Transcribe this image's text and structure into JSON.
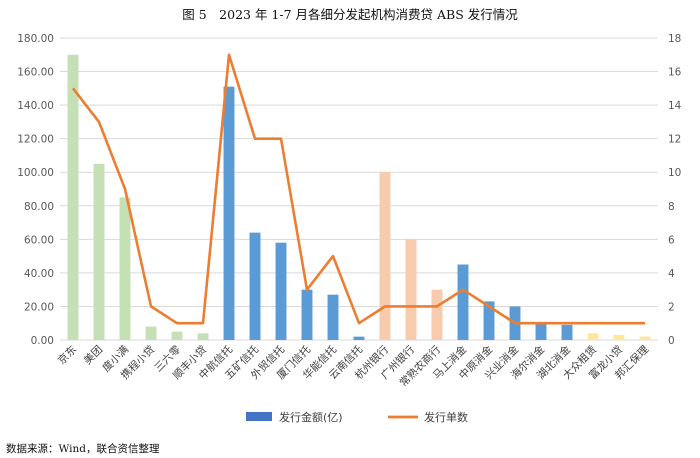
{
  "title": "图 5　2023 年 1-7 月各细分发起机构消费贷 ABS 发行情况",
  "source": "数据来源：Wind，联合资信整理",
  "chart_data": {
    "type": "bar",
    "categories": [
      "京东",
      "美团",
      "度小满",
      "携程小贷",
      "三六零",
      "顺丰小贷",
      "中航信托",
      "五矿信托",
      "外贸信托",
      "厦门信托",
      "华能信托",
      "云南信托",
      "杭州银行",
      "广州银行",
      "常熟农商行",
      "马上消金",
      "中原消金",
      "兴业消金",
      "海尔消金",
      "湖北消金",
      "大众租赁",
      "富龙小贷",
      "邦汇保理"
    ],
    "series": [
      {
        "name": "发行金额(亿)",
        "kind": "bar",
        "axis": "left",
        "values": [
          170,
          105,
          85,
          8,
          5,
          4,
          151,
          64,
          58,
          30,
          27,
          2,
          100,
          60,
          30,
          45,
          23,
          20,
          10,
          9,
          4,
          3,
          2
        ],
        "colors": [
          "#c5e0b4",
          "#c5e0b4",
          "#c5e0b4",
          "#c5e0b4",
          "#c5e0b4",
          "#c5e0b4",
          "#5b9bd5",
          "#5b9bd5",
          "#5b9bd5",
          "#5b9bd5",
          "#5b9bd5",
          "#5b9bd5",
          "#f8cbad",
          "#f8cbad",
          "#f8cbad",
          "#5b9bd5",
          "#5b9bd5",
          "#5b9bd5",
          "#5b9bd5",
          "#5b9bd5",
          "#ffe699",
          "#ffe699",
          "#ffe699"
        ]
      },
      {
        "name": "发行单数",
        "kind": "line",
        "axis": "right",
        "color": "#ed7d31",
        "values": [
          15,
          13,
          9,
          2,
          1,
          1,
          17,
          12,
          12,
          3,
          5,
          1,
          2,
          2,
          2,
          3,
          2,
          1,
          1,
          1,
          1,
          1,
          1
        ]
      }
    ],
    "y_left": {
      "min": 0,
      "max": 180,
      "step": 20,
      "tick_decimals": 2
    },
    "y_right": {
      "min": 0,
      "max": 18,
      "step": 2
    },
    "legend_position": "bottom",
    "legend_swatch_color": "#4472c4",
    "grid": true
  }
}
